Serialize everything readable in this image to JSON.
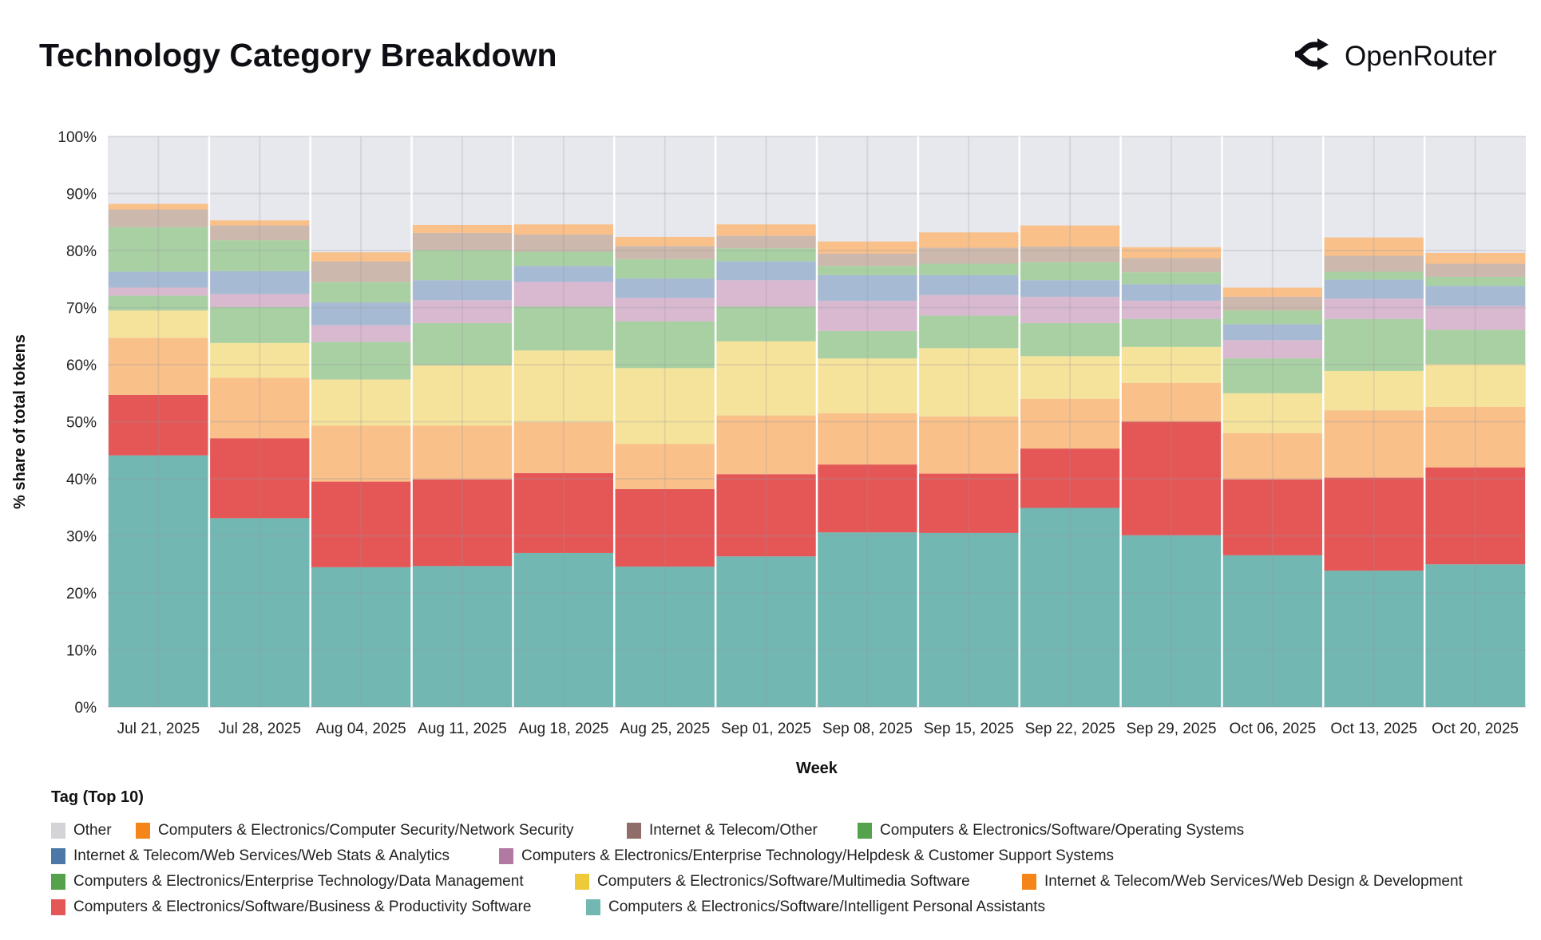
{
  "header": {
    "title": "Technology Category Breakdown",
    "brand": "OpenRouter",
    "brand_icon": "openrouter-logo-icon"
  },
  "legend": {
    "title": "Tag (Top 10)"
  },
  "chart_data": {
    "type": "bar",
    "stacked": true,
    "title": "Technology Category Breakdown",
    "xlabel": "Week",
    "ylabel": "% share of total tokens",
    "ylim": [
      0,
      100
    ],
    "yticks": [
      "0%",
      "10%",
      "20%",
      "30%",
      "40%",
      "50%",
      "60%",
      "70%",
      "80%",
      "90%",
      "100%"
    ],
    "grid": true,
    "legend_position": "bottom",
    "categories": [
      "Jul 21, 2025",
      "Jul 28, 2025",
      "Aug 04, 2025",
      "Aug 11, 2025",
      "Aug 18, 2025",
      "Aug 25, 2025",
      "Sep 01, 2025",
      "Sep 08, 2025",
      "Sep 15, 2025",
      "Sep 22, 2025",
      "Sep 29, 2025",
      "Oct 06, 2025",
      "Oct 13, 2025",
      "Oct 20, 2025"
    ],
    "series": [
      {
        "name": "Computers & Electronics/Software/Intelligent Personal Assistants",
        "color": "#72b7b2",
        "fill": "#72b7b2",
        "values": [
          44.1,
          33.1,
          24.5,
          24.7,
          27.0,
          24.6,
          26.4,
          30.6,
          30.5,
          34.9,
          30.1,
          26.6,
          23.9,
          25.0
        ]
      },
      {
        "name": "Computers & Electronics/Software/Business & Productivity Software",
        "color": "#e45756",
        "fill": "#e45756",
        "values": [
          10.6,
          14.0,
          15.0,
          15.2,
          14.0,
          13.6,
          14.4,
          11.9,
          10.4,
          10.4,
          19.9,
          13.3,
          16.3,
          17.0
        ]
      },
      {
        "name": "Internet & Telecom/Web Services/Web Design & Development",
        "color": "#f58518",
        "fill": "#f9c08a",
        "values": [
          10.0,
          10.6,
          9.8,
          9.4,
          8.9,
          7.9,
          10.3,
          9.0,
          10.0,
          8.7,
          6.8,
          8.1,
          11.8,
          10.6
        ]
      },
      {
        "name": "Computers & Electronics/Software/Multimedia Software",
        "color": "#eeca3b",
        "fill": "#f6e39b",
        "values": [
          4.8,
          6.1,
          8.1,
          10.6,
          12.6,
          13.3,
          13.0,
          9.6,
          12.0,
          7.5,
          6.3,
          7.0,
          6.9,
          7.5
        ]
      },
      {
        "name": "Computers & Electronics/Enterprise Technology/Data Management",
        "color": "#54a24b",
        "fill": "#a9d0a2",
        "values": [
          2.6,
          6.3,
          6.6,
          7.4,
          7.7,
          8.2,
          6.1,
          4.8,
          5.7,
          5.8,
          4.9,
          6.1,
          9.1,
          6.0
        ]
      },
      {
        "name": "Computers & Electronics/Enterprise Technology/Helpdesk & Customer Support Systems",
        "color": "#b279a2",
        "fill": "#d9b9d0",
        "values": [
          1.4,
          2.3,
          2.9,
          4.0,
          4.3,
          4.1,
          4.6,
          5.3,
          3.6,
          4.6,
          3.2,
          3.2,
          3.6,
          4.2
        ]
      },
      {
        "name": "Internet & Telecom/Web Services/Web Stats & Analytics",
        "color": "#4c78a8",
        "fill": "#a6bbd3",
        "values": [
          2.8,
          4.0,
          4.0,
          3.5,
          2.8,
          3.4,
          3.3,
          4.5,
          3.5,
          2.9,
          2.9,
          2.8,
          3.3,
          3.5
        ]
      },
      {
        "name": "Computers & Electronics/Software/Operating Systems",
        "color": "#54a24b",
        "fill": "#a9d0a2",
        "values": [
          7.8,
          5.4,
          3.6,
          5.3,
          2.5,
          3.4,
          2.3,
          1.6,
          2.0,
          3.2,
          2.1,
          2.4,
          1.4,
          1.6
        ]
      },
      {
        "name": "Internet & Telecom/Other",
        "color": "#8f6d68",
        "fill": "#cdb8ad",
        "values": [
          3.1,
          2.6,
          3.6,
          3.0,
          3.0,
          2.3,
          2.2,
          2.2,
          2.8,
          2.7,
          2.5,
          2.4,
          2.8,
          2.3
        ]
      },
      {
        "name": "Computers & Electronics/Computer Security/Network Security",
        "color": "#f58518",
        "fill": "#f9c08a",
        "values": [
          1.0,
          0.9,
          1.6,
          1.4,
          1.8,
          1.6,
          2.0,
          2.1,
          2.7,
          3.7,
          1.9,
          1.6,
          3.2,
          1.9
        ]
      },
      {
        "name": "Other",
        "color": "#d4d4d8",
        "fill": "#e7e8ee",
        "values": [
          11.8,
          14.7,
          20.3,
          15.5,
          15.4,
          17.6,
          15.4,
          18.4,
          16.8,
          15.6,
          19.4,
          26.5,
          17.7,
          20.4
        ]
      }
    ],
    "legend_order": [
      10,
      9,
      8,
      7,
      6,
      5,
      4,
      3,
      2,
      1,
      0
    ]
  }
}
